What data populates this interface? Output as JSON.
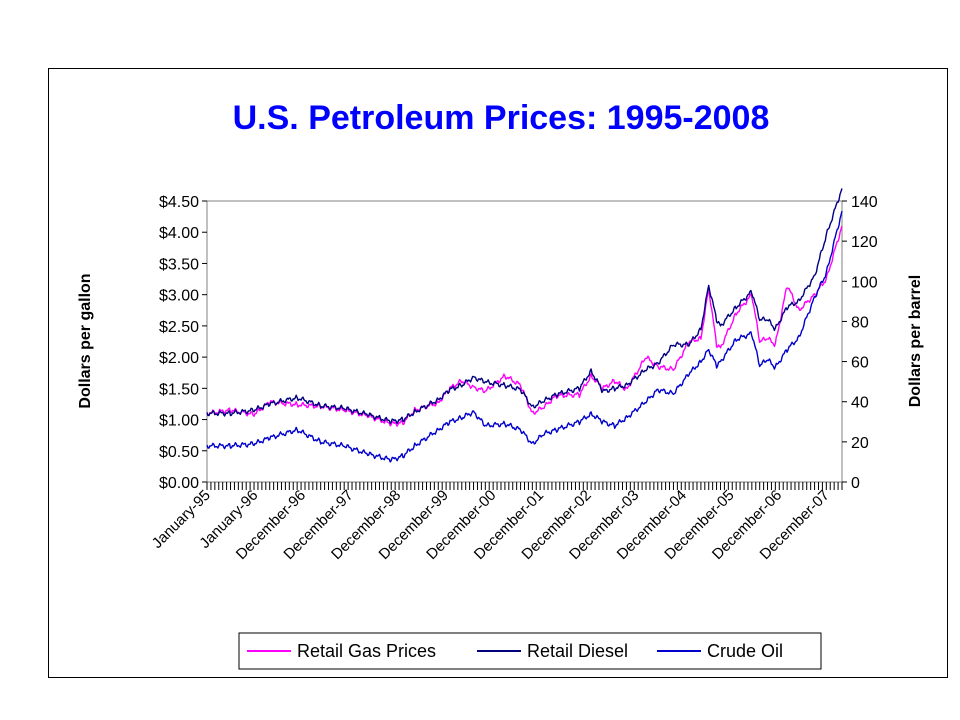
{
  "chart_data": {
    "type": "line",
    "title": "U.S. Petroleum Prices: 1995-2008",
    "ylabel_left": "Dollars per gallon",
    "ylabel_right": "Dollars per barrel",
    "ylim_left": [
      0,
      4.5
    ],
    "ylim_right": [
      0,
      140
    ],
    "y_ticks_left": [
      "$0.00",
      "$0.50",
      "$1.00",
      "$1.50",
      "$2.00",
      "$2.50",
      "$3.00",
      "$3.50",
      "$4.00",
      "$4.50"
    ],
    "y_ticks_right": [
      "0",
      "20",
      "40",
      "60",
      "80",
      "100",
      "120",
      "140"
    ],
    "x_tick_labels": [
      "January-95",
      "January-96",
      "December-96",
      "December-97",
      "December-98",
      "December-99",
      "December-00",
      "December-01",
      "December-02",
      "December-03",
      "December-04",
      "December-05",
      "December-06",
      "December-07"
    ],
    "x_range": [
      "1995-01",
      "2008-07"
    ],
    "legend_position": "bottom",
    "grid": false,
    "series": [
      {
        "name": "Retail Gas Prices",
        "axis": "left",
        "color": "#ff00ff",
        "x": [
          "1995-01",
          "1995-07",
          "1996-01",
          "1996-05",
          "1996-12",
          "1997-06",
          "1997-12",
          "1998-06",
          "1998-12",
          "1999-03",
          "1999-06",
          "1999-12",
          "2000-03",
          "2000-06",
          "2000-09",
          "2000-12",
          "2001-05",
          "2001-09",
          "2001-12",
          "2002-03",
          "2002-06",
          "2002-12",
          "2003-03",
          "2003-06",
          "2003-09",
          "2003-12",
          "2004-05",
          "2004-08",
          "2004-12",
          "2005-04",
          "2005-07",
          "2005-09",
          "2005-11",
          "2005-12",
          "2006-04",
          "2006-08",
          "2006-10",
          "2006-12",
          "2007-02",
          "2007-05",
          "2007-08",
          "2007-12",
          "2008-03",
          "2008-07"
        ],
        "values": [
          1.1,
          1.15,
          1.08,
          1.28,
          1.24,
          1.21,
          1.15,
          1.06,
          0.93,
          0.95,
          1.15,
          1.27,
          1.5,
          1.62,
          1.52,
          1.45,
          1.7,
          1.55,
          1.1,
          1.2,
          1.38,
          1.4,
          1.7,
          1.5,
          1.62,
          1.48,
          2.0,
          1.85,
          1.8,
          2.25,
          2.3,
          3.1,
          2.2,
          2.15,
          2.7,
          3.0,
          2.25,
          2.3,
          2.2,
          3.15,
          2.75,
          3.0,
          3.25,
          4.1
        ]
      },
      {
        "name": "Retail Diesel",
        "axis": "left",
        "color": "#000080",
        "x": [
          "1995-01",
          "1995-07",
          "1996-01",
          "1996-05",
          "1996-12",
          "1997-06",
          "1997-12",
          "1998-06",
          "1998-12",
          "1999-03",
          "1999-06",
          "1999-12",
          "2000-03",
          "2000-06",
          "2000-09",
          "2000-12",
          "2001-05",
          "2001-09",
          "2001-12",
          "2002-03",
          "2002-06",
          "2002-12",
          "2003-03",
          "2003-06",
          "2003-09",
          "2003-12",
          "2004-05",
          "2004-08",
          "2004-12",
          "2005-04",
          "2005-07",
          "2005-09",
          "2005-11",
          "2005-12",
          "2006-04",
          "2006-08",
          "2006-10",
          "2006-12",
          "2007-02",
          "2007-05",
          "2007-08",
          "2007-12",
          "2008-03",
          "2008-07"
        ],
        "values": [
          1.1,
          1.1,
          1.15,
          1.25,
          1.35,
          1.22,
          1.18,
          1.08,
          0.97,
          1.0,
          1.12,
          1.32,
          1.48,
          1.55,
          1.68,
          1.6,
          1.55,
          1.48,
          1.2,
          1.3,
          1.4,
          1.5,
          1.78,
          1.45,
          1.5,
          1.55,
          1.8,
          1.9,
          2.2,
          2.2,
          2.45,
          3.15,
          2.6,
          2.5,
          2.8,
          3.05,
          2.6,
          2.6,
          2.45,
          2.8,
          2.9,
          3.3,
          3.95,
          4.7
        ]
      },
      {
        "name": "Crude Oil",
        "axis": "right",
        "color": "#0000cc",
        "x": [
          "1995-01",
          "1995-07",
          "1996-01",
          "1996-05",
          "1996-12",
          "1997-06",
          "1997-12",
          "1998-06",
          "1998-12",
          "1999-03",
          "1999-06",
          "1999-12",
          "2000-03",
          "2000-06",
          "2000-09",
          "2000-12",
          "2001-05",
          "2001-09",
          "2001-12",
          "2002-03",
          "2002-06",
          "2002-12",
          "2003-03",
          "2003-06",
          "2003-09",
          "2003-12",
          "2004-05",
          "2004-08",
          "2004-12",
          "2005-04",
          "2005-07",
          "2005-09",
          "2005-11",
          "2005-12",
          "2006-04",
          "2006-08",
          "2006-10",
          "2006-12",
          "2007-02",
          "2007-05",
          "2007-08",
          "2007-12",
          "2008-03",
          "2008-07"
        ],
        "values": [
          18,
          18,
          19,
          22,
          26,
          20,
          18,
          14,
          11,
          13,
          18,
          26,
          30,
          32,
          35,
          28,
          29,
          26,
          19,
          24,
          26,
          30,
          34,
          30,
          28,
          32,
          40,
          46,
          44,
          54,
          60,
          66,
          58,
          60,
          71,
          74,
          58,
          61,
          57,
          66,
          72,
          92,
          104,
          135
        ]
      }
    ]
  }
}
